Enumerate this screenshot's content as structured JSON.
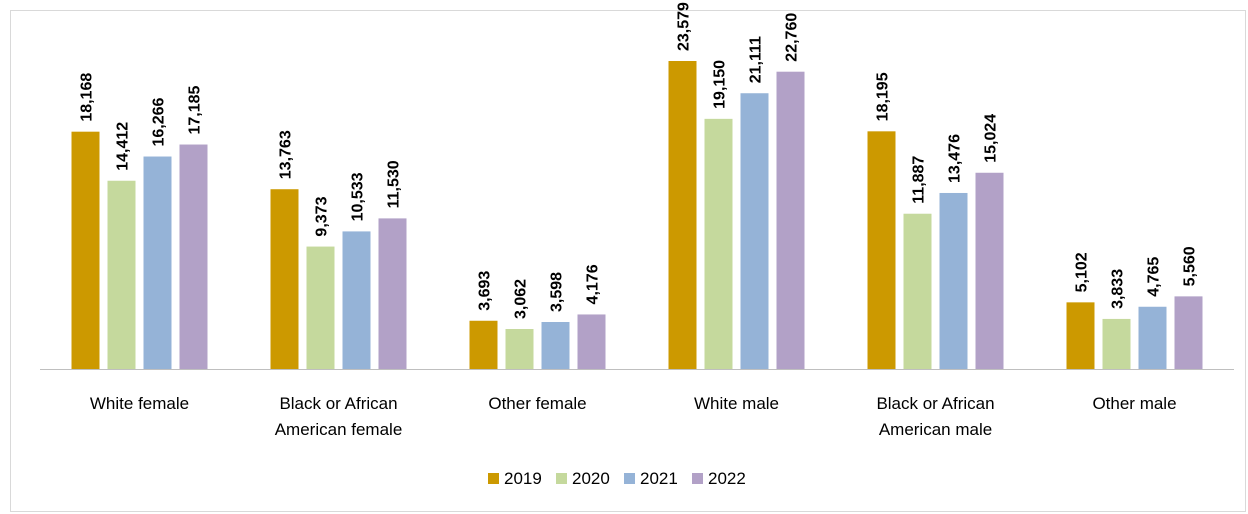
{
  "chart_data": {
    "type": "bar",
    "categories": [
      [
        "White female"
      ],
      [
        "Black or African",
        "American female"
      ],
      [
        "Other female"
      ],
      [
        "White male"
      ],
      [
        "Black or African",
        "American male"
      ],
      [
        "Other male"
      ]
    ],
    "series": [
      {
        "name": "2019",
        "color": "#cc9900",
        "values": [
          18168,
          13763,
          3693,
          23579,
          18195,
          5102
        ],
        "labels": [
          "18,168",
          "13,763",
          "3,693",
          "23,579",
          "18,195",
          "5,102"
        ]
      },
      {
        "name": "2020",
        "color": "#c5d99d",
        "values": [
          14412,
          9373,
          3062,
          19150,
          11887,
          3833
        ],
        "labels": [
          "14,412",
          "9,373",
          "3,062",
          "19,150",
          "11,887",
          "3,833"
        ]
      },
      {
        "name": "2021",
        "color": "#95b3d7",
        "values": [
          16266,
          10533,
          3598,
          21111,
          13476,
          4765
        ],
        "labels": [
          "16,266",
          "10,533",
          "3,598",
          "21,111",
          "13,476",
          "4,765"
        ]
      },
      {
        "name": "2022",
        "color": "#b2a1c7",
        "values": [
          17185,
          11530,
          4176,
          22760,
          15024,
          5560
        ],
        "labels": [
          "17,185",
          "11,530",
          "4,176",
          "22,760",
          "15,024",
          "5,560"
        ]
      }
    ],
    "ylim": [
      0,
      25000
    ],
    "grid": false,
    "legend_position": "bottom",
    "axis_color": "#bfbfbf"
  }
}
